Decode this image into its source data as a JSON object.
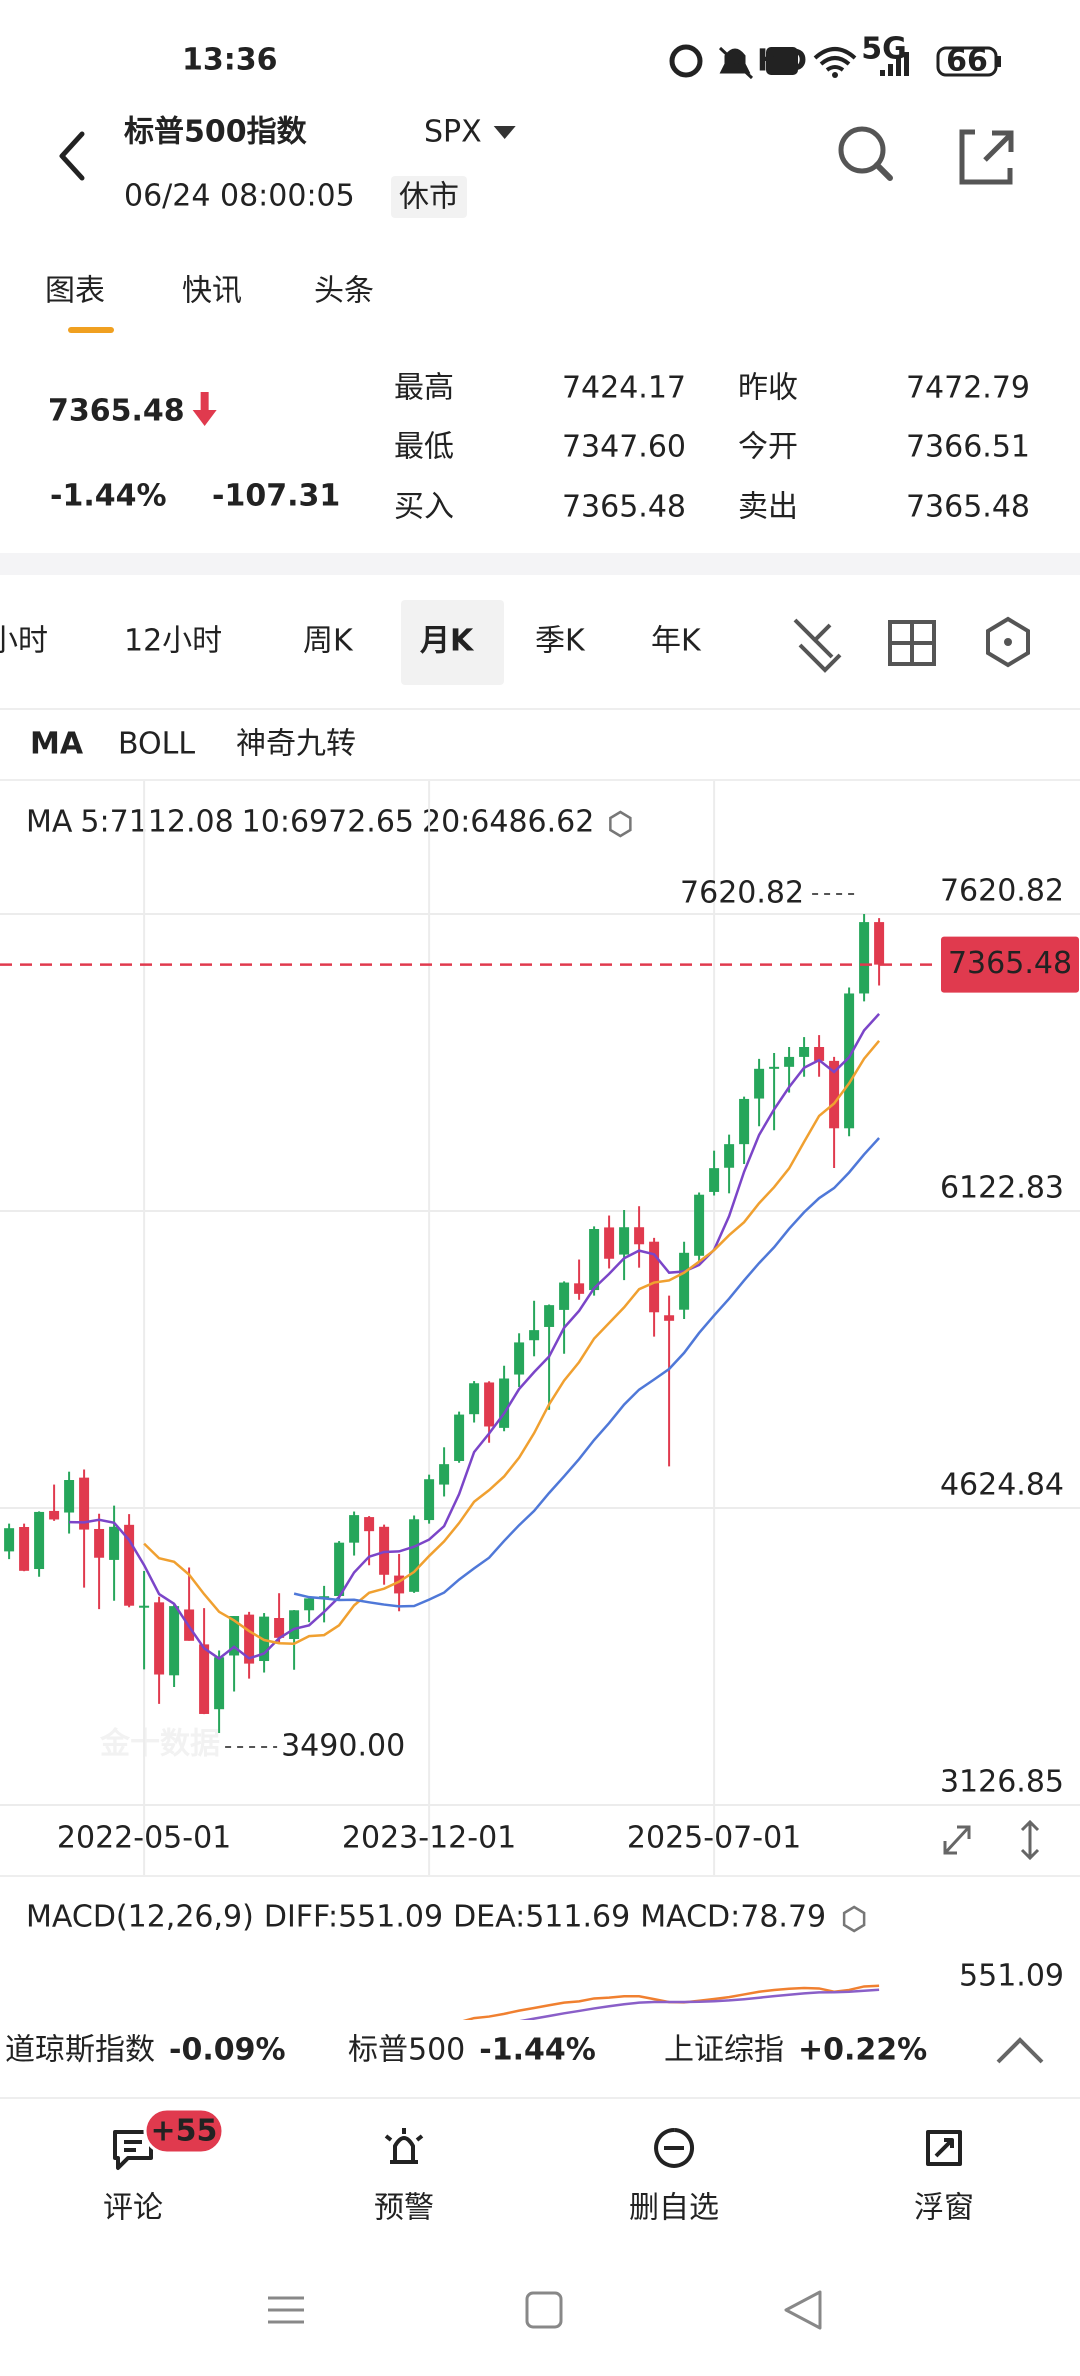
{
  "status_bar": {
    "time": "13:36",
    "network": "5G",
    "badge": "HD",
    "battery": "66"
  },
  "header": {
    "title": "标普500指数",
    "symbol": "SPX",
    "timestamp": "06/24 08:00:05",
    "status": "休市"
  },
  "tabs": [
    "图表",
    "快讯",
    "头条"
  ],
  "active_tab": 0,
  "quote": {
    "price": "7365.48",
    "change_pct": "-1.44%",
    "change": "-107.31",
    "color": "#e03a4e",
    "fields": [
      {
        "label": "最高",
        "value": "7424.17",
        "color": "#e03a4e"
      },
      {
        "label": "最低",
        "value": "7347.60",
        "color": "#e03a4e"
      },
      {
        "label": "买入",
        "value": "7365.48",
        "color": "#222222"
      },
      {
        "label": "昨收",
        "value": "7472.79",
        "color": "#222222"
      },
      {
        "label": "今开",
        "value": "7366.51",
        "color": "#e03a4e"
      },
      {
        "label": "卖出",
        "value": "7365.48",
        "color": "#222222"
      }
    ]
  },
  "periods": [
    "小时",
    "12小时",
    "周K",
    "月K",
    "季K",
    "年K"
  ],
  "active_period": 3,
  "indicator_tabs": [
    "MA",
    "BOLL",
    "神奇九转"
  ],
  "chart_data": {
    "type": "candlestick",
    "legend_title": "MA",
    "legend": [
      {
        "text": "5:7112.08",
        "color": "#7b45c8",
        "period": 5
      },
      {
        "text": "10:6972.65",
        "color": "#f0a030",
        "period": 10
      },
      {
        "text": "20:6486.62",
        "color": "#4f78d8",
        "period": 20
      }
    ],
    "x": [
      "2021-08-01",
      "2021-09-01",
      "2021-10-01",
      "2021-11-01",
      "2021-12-01",
      "2022-01-01",
      "2022-02-01",
      "2022-03-01",
      "2022-04-01",
      "2022-05-01",
      "2022-06-01",
      "2022-07-01",
      "2022-08-01",
      "2022-09-01",
      "2022-10-01",
      "2022-11-01",
      "2022-12-01",
      "2023-01-01",
      "2023-02-01",
      "2023-03-01",
      "2023-04-01",
      "2023-05-01",
      "2023-06-01",
      "2023-07-01",
      "2023-08-01",
      "2023-09-01",
      "2023-10-01",
      "2023-11-01",
      "2023-12-01",
      "2024-01-01",
      "2024-02-01",
      "2024-03-01",
      "2024-04-01",
      "2024-05-01",
      "2024-06-01",
      "2024-07-01",
      "2024-08-01",
      "2024-09-01",
      "2024-10-01",
      "2024-11-01",
      "2024-12-01",
      "2025-01-01",
      "2025-02-01",
      "2025-03-01",
      "2025-04-01",
      "2025-05-01",
      "2025-06-01",
      "2025-07-01",
      "2025-08-01",
      "2025-09-01",
      "2025-10-01",
      "2025-11-01",
      "2025-12-01",
      "2026-01-01",
      "2026-02-01",
      "2026-03-01",
      "2026-04-01",
      "2026-05-01",
      "2026-06-01"
    ],
    "open": [
      4406,
      4529,
      4317,
      4610,
      4602,
      4778,
      4519,
      4363,
      4540,
      4131,
      4149,
      3781,
      4113,
      3937,
      3610,
      3881,
      4087,
      3853,
      4070,
      3964,
      4109,
      4166,
      4181,
      4450,
      4579,
      4530,
      4284,
      4202,
      4564,
      4743,
      4862,
      5098,
      5258,
      5029,
      5298,
      5471,
      5538,
      5624,
      5758,
      5724,
      6040,
      5903,
      6041,
      5968,
      5597,
      5625,
      5897,
      6219,
      6341,
      6460,
      6690,
      6840,
      6850,
      6900,
      6950,
      6880,
      6540,
      7220,
      7580
    ],
    "high": [
      4546,
      4546,
      4608,
      4743,
      4808,
      4819,
      4596,
      4637,
      4594,
      4307,
      4177,
      4140,
      4325,
      4120,
      3906,
      4080,
      4101,
      4095,
      4195,
      4110,
      4170,
      4232,
      4458,
      4607,
      4584,
      4541,
      4393,
      4587,
      4793,
      4931,
      5111,
      5265,
      5264,
      5342,
      5506,
      5670,
      5651,
      5768,
      5878,
      6045,
      6100,
      6128,
      6147,
      5987,
      5696,
      5968,
      6216,
      6427,
      6508,
      6700,
      6890,
      6920,
      6950,
      7000,
      7010,
      6900,
      7250,
      7620.82,
      7600
    ],
    "low": [
      4367,
      4306,
      4278,
      4560,
      4496,
      4223,
      4115,
      4157,
      4124,
      3811,
      3637,
      3722,
      3955,
      3585,
      3490,
      3699,
      3764,
      3795,
      3943,
      3809,
      4049,
      4048,
      4166,
      4385,
      4336,
      4238,
      4104,
      4197,
      4546,
      4683,
      4853,
      5056,
      4954,
      5012,
      5235,
      5390,
      5120,
      5403,
      5675,
      5696,
      5833,
      5774,
      5837,
      5489,
      4835,
      5578,
      5861,
      6201,
      6212,
      6360,
      6550,
      6530,
      6720,
      6800,
      6800,
      6340,
      6500,
      7180,
      7260
    ],
    "close": [
      4523,
      4308,
      4605,
      4567,
      4766,
      4516,
      4374,
      4530,
      4132,
      4132,
      3785,
      4130,
      3955,
      3586,
      3872,
      4080,
      3840,
      4077,
      3970,
      4109,
      4169,
      4180,
      4450,
      4589,
      4508,
      4288,
      4194,
      4568,
      4770,
      4846,
      5096,
      5254,
      5036,
      5278,
      5460,
      5522,
      5648,
      5762,
      5705,
      6032,
      5882,
      6041,
      5955,
      5612,
      5569,
      5912,
      6205,
      6339,
      6460,
      6688,
      6840,
      6850,
      6900,
      6950,
      6880,
      6540,
      7220,
      7580,
      7365.48
    ],
    "up_color": "#26a65b",
    "down_color": "#e03a4e",
    "ylim": [
      3126.85,
      7620.82
    ],
    "yticks": [
      7620.82,
      6122.83,
      4624.84,
      3126.85
    ],
    "xticks": [
      "2022-05-01",
      "2023-12-01",
      "2025-07-01"
    ],
    "grid": true,
    "last_price": 7365.48,
    "high_mark": 7620.82,
    "low_mark": {
      "value": 3490,
      "label": "3490.00"
    },
    "watermark": "金十数据"
  },
  "macd": {
    "title": "MACD(12,26,9)",
    "params": [
      12,
      26,
      9
    ],
    "items": [
      {
        "text": "DIFF:551.09",
        "color": "#f08030"
      },
      {
        "text": "DEA:511.69",
        "color": "#8a5fc8"
      },
      {
        "text": "MACD:78.79",
        "color": "#4fb8d8"
      }
    ],
    "ytick": 551.09
  },
  "tickers": [
    {
      "name": "道琼斯指数",
      "change": "-0.09%",
      "color": "#e03a4e"
    },
    {
      "name": "标普500",
      "change": "-1.44%",
      "color": "#e03a4e"
    },
    {
      "name": "上证综指",
      "change": "+0.22%",
      "color": "#2aa15e"
    }
  ],
  "nav": {
    "items": [
      "评论",
      "预警",
      "删自选",
      "浮窗"
    ],
    "badge": "+55"
  }
}
